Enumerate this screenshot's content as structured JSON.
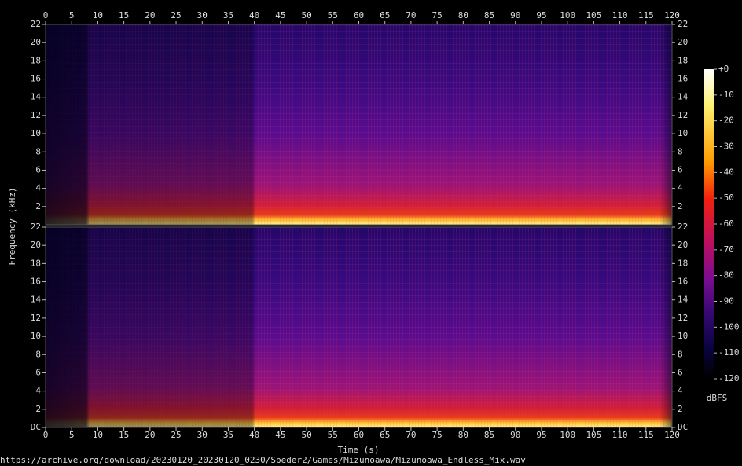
{
  "chart_data": {
    "type": "spectrogram",
    "xlabel": "Time (s)",
    "ylabel": "Frequency (kHz)",
    "source": "https://archive.org/download/20230120_20230120_0230/Speder2/Games/Mizunoawa/Mizunoawa_Endless_Mix.wav",
    "xlim": [
      0,
      120
    ],
    "xticks": [
      0,
      5,
      10,
      15,
      20,
      25,
      30,
      35,
      40,
      45,
      50,
      55,
      60,
      65,
      70,
      75,
      80,
      85,
      90,
      95,
      100,
      105,
      110,
      115,
      120
    ],
    "panels": [
      {
        "ylim": [
          0,
          22
        ],
        "yticks": [
          2,
          4,
          6,
          8,
          10,
          12,
          14,
          16,
          18,
          20,
          22
        ]
      },
      {
        "ylim": [
          0,
          22
        ],
        "yticks": [
          {
            "value": 0,
            "label": "DC"
          },
          2,
          4,
          6,
          8,
          10,
          12,
          14,
          16,
          18,
          20,
          22
        ]
      }
    ],
    "colorbar": {
      "label": "dBFS",
      "lim": [
        -120,
        0
      ],
      "ticks": [
        {
          "value": 0,
          "label": "+0"
        },
        -10,
        -20,
        -30,
        -40,
        -50,
        -60,
        -70,
        -80,
        -90,
        -100,
        -110,
        -120
      ]
    }
  }
}
